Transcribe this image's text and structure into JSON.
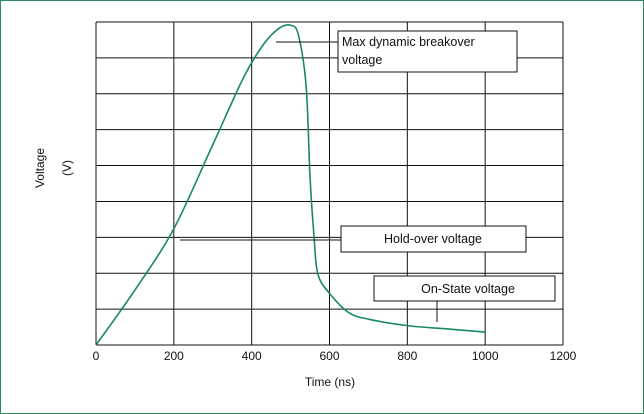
{
  "chart_data": {
    "type": "line",
    "xlabel": "Time (ns)",
    "ylabel_line1": "Voltage",
    "ylabel_line2": "(V)",
    "xlim": [
      0,
      1200
    ],
    "x_ticks": [
      "0",
      "200",
      "400",
      "600",
      "800",
      "1000",
      "1200"
    ],
    "y_tick_labels": [],
    "grid": true,
    "series": [
      {
        "color": "#1a8a5a",
        "x": [
          0,
          100,
          200,
          300,
          380,
          430,
          470,
          500,
          520,
          540,
          550,
          560,
          570,
          600,
          650,
          700,
          800,
          900,
          1000
        ],
        "y": [
          0,
          0.17,
          0.36,
          0.62,
          0.83,
          0.93,
          0.98,
          0.99,
          0.96,
          0.8,
          0.52,
          0.34,
          0.22,
          0.16,
          0.1,
          0.08,
          0.06,
          0.05,
          0.04
        ]
      }
    ],
    "annotations": {
      "max_line1": "Max dynamic breakover",
      "max_line2": "voltage",
      "hold": "Hold-over voltage",
      "onstate": "On-State voltage"
    }
  }
}
